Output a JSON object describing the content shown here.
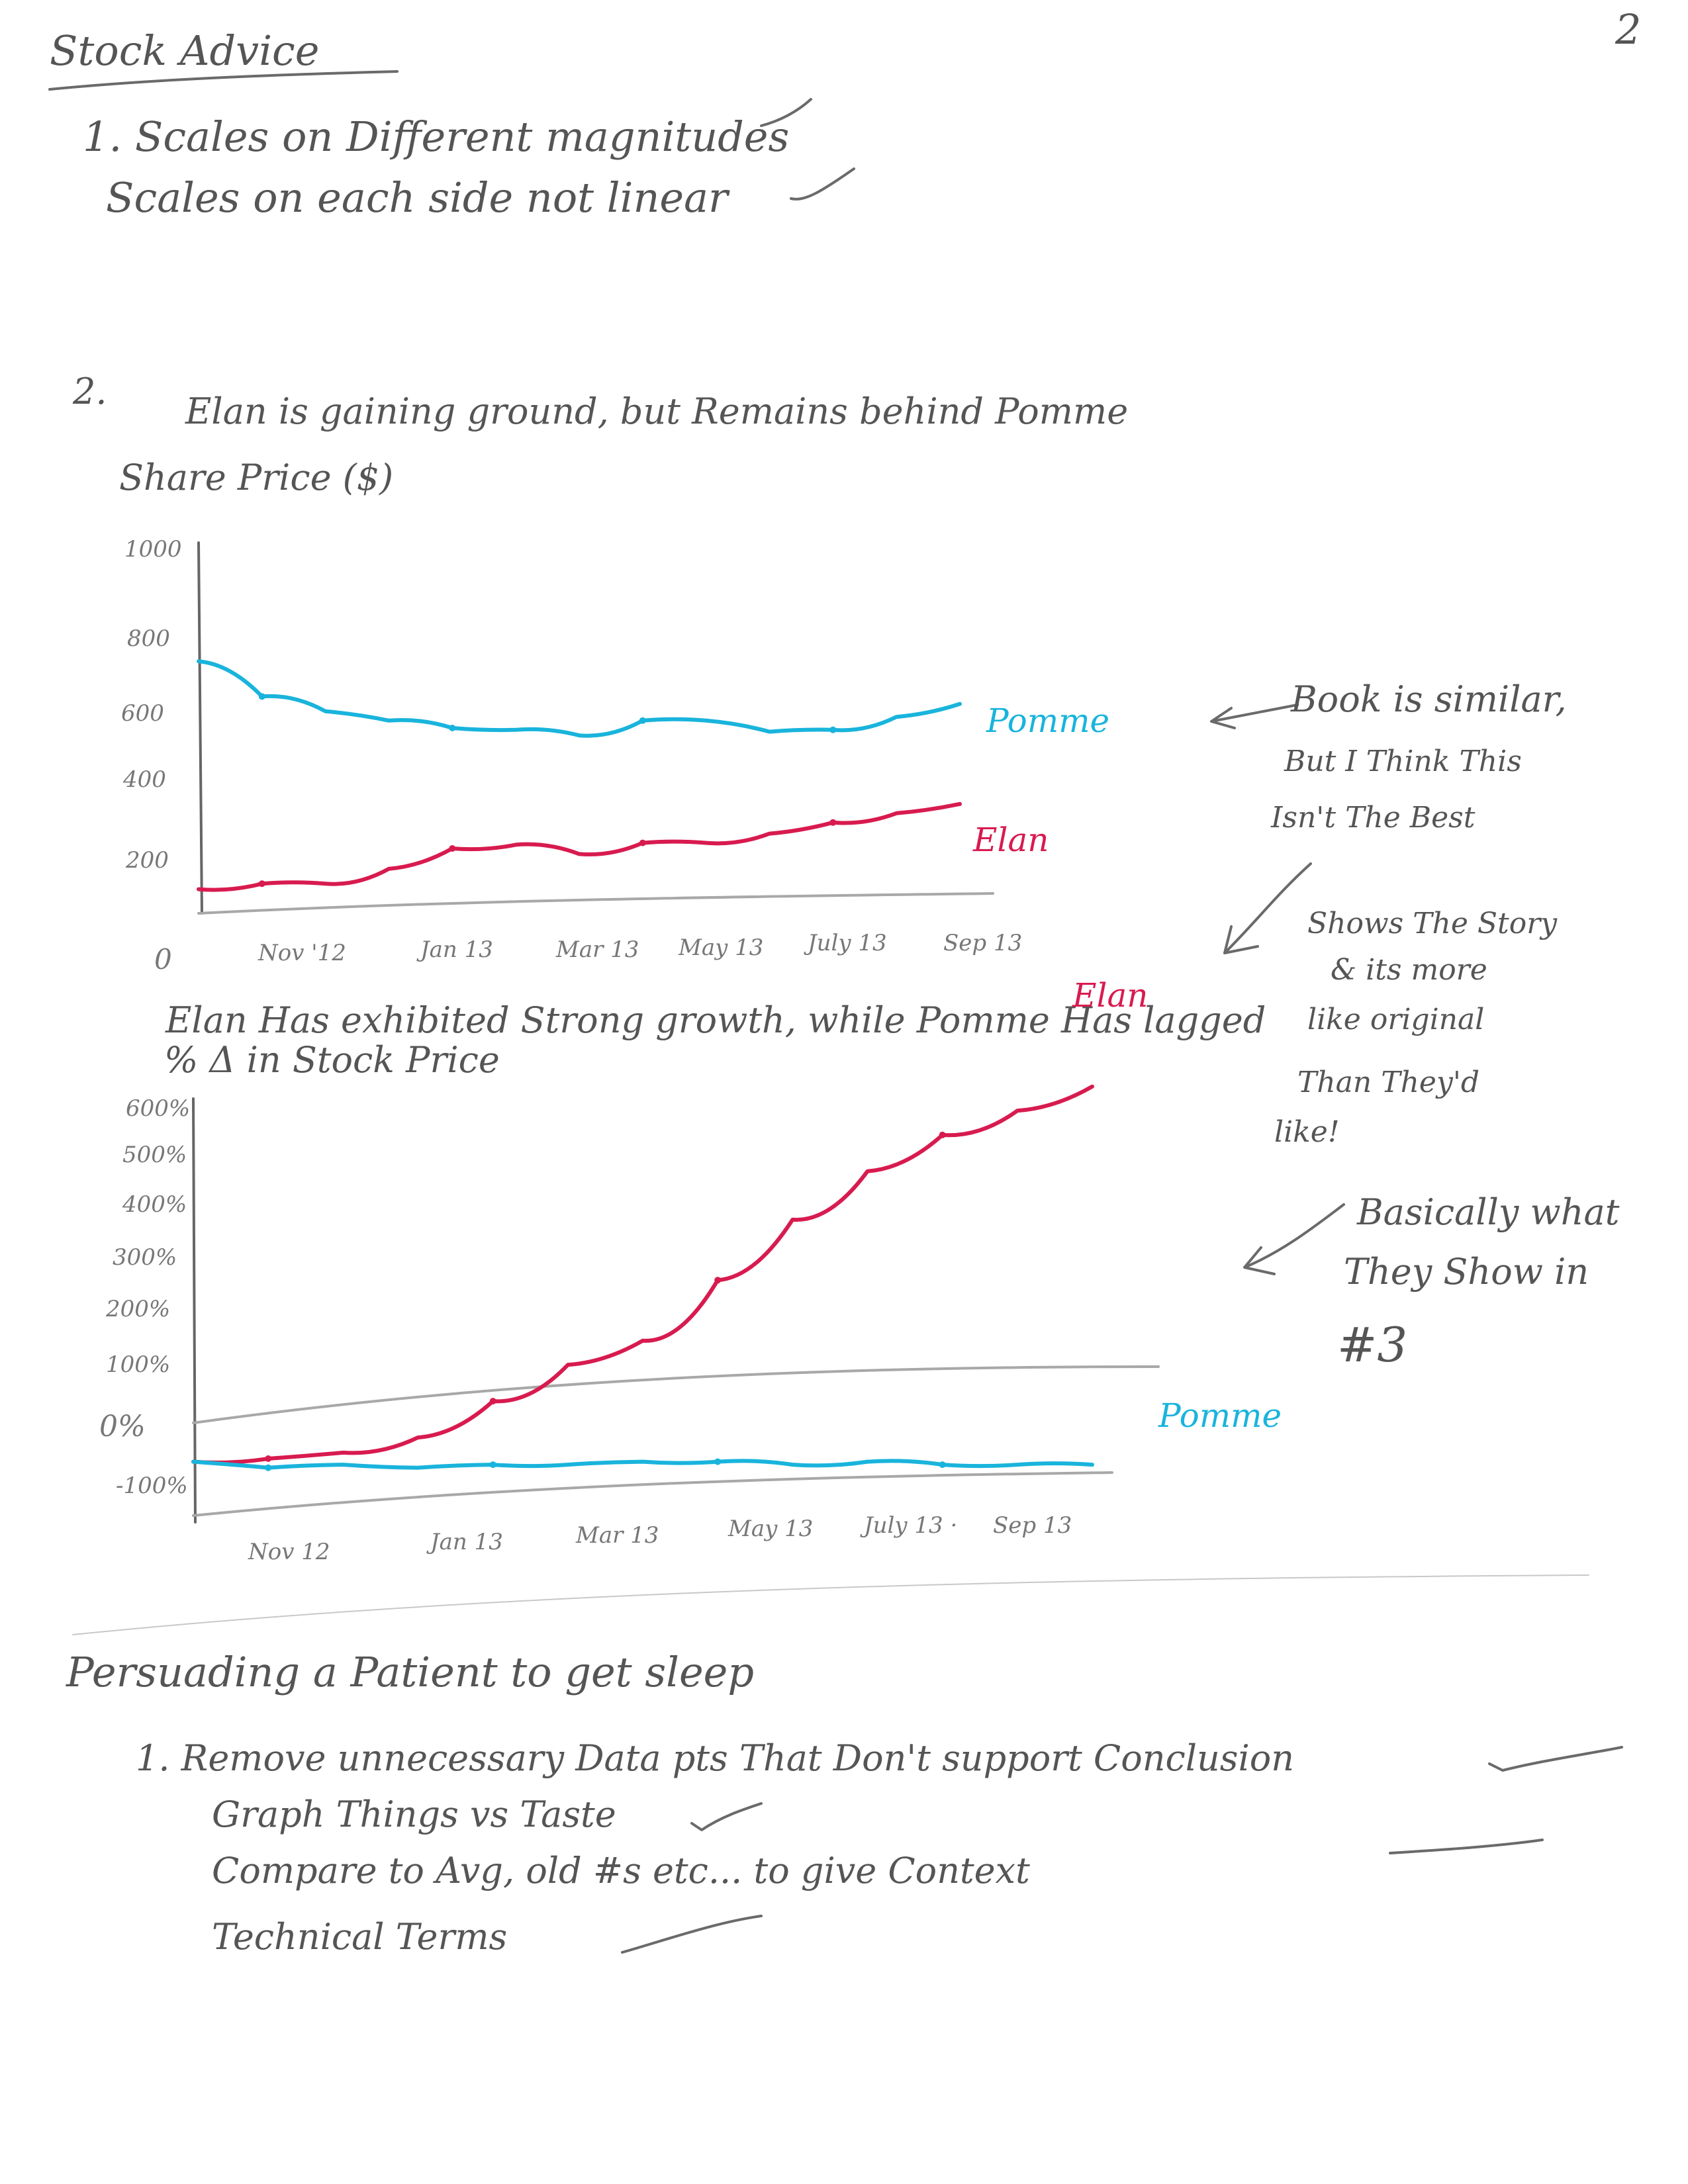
{
  "page_number": "2",
  "header": {
    "title": "Stock Advice"
  },
  "list1": {
    "line1": "1. Scales on Different magnitudes",
    "line2": "Scales on each side not linear"
  },
  "section2": {
    "number": "2.",
    "chart_a": {
      "title": "Elan is gaining ground, but Remains behind Pomme",
      "ylabel": "Share Price ($)",
      "y_ticks": [
        "1000",
        "800",
        "600",
        "400",
        "200",
        "0"
      ],
      "x_ticks": [
        "Nov '12",
        "Jan 13",
        "Mar 13",
        "May 13",
        "July 13",
        "Sep 13"
      ],
      "series_labels": {
        "pomme": "Pomme",
        "elan": "Elan"
      }
    },
    "chart_b": {
      "title_line1": "Elan Has exhibited Strong growth, while Pomme Has lagged",
      "title_line2": "% Δ in Stock Price",
      "y_ticks": [
        "600%",
        "500%",
        "400%",
        "300%",
        "200%",
        "100%",
        "0%",
        "-100%"
      ],
      "x_ticks": [
        "Nov 12",
        "Jan 13",
        "Mar 13",
        "May 13",
        "July 13 ·",
        "Sep 13"
      ],
      "series_labels": {
        "elan": "Elan",
        "pomme": "Pomme"
      }
    },
    "notes": {
      "note1_line1": "Book is similar,",
      "note1_line2": "But I Think This",
      "note1_line3": "Isn't The Best",
      "note2_line1": "Shows The Story",
      "note2_line2": "& its more",
      "note2_line3": "like original",
      "note2_line4": "Than They'd",
      "note2_line5": "like!",
      "note3_line1": "Basically what",
      "note3_line2": "They Show in",
      "note3_line3": "#3"
    }
  },
  "section3": {
    "heading": "Persuading a Patient to get sleep",
    "items": [
      "1. Remove unnecessary Data pts That Don't support Conclusion",
      "Graph Things vs Taste",
      "Compare to Avg, old #s etc...   to give   Context",
      "Technical Terms"
    ]
  },
  "chart_data": [
    {
      "type": "line",
      "title": "Elan is gaining ground, but Remains behind Pomme",
      "ylabel": "Share Price ($)",
      "xlabel": "",
      "ylim": [
        0,
        1000
      ],
      "categories": [
        "Nov '12",
        "Jan 13",
        "Mar 13",
        "May 13",
        "July 13",
        "Sep 13"
      ],
      "x": [
        0,
        1,
        2,
        3,
        4,
        5,
        6,
        7,
        8,
        9,
        10,
        11,
        12
      ],
      "series": [
        {
          "name": "Pomme",
          "values": [
            680,
            585,
            545,
            520,
            500,
            495,
            480,
            520,
            520,
            490,
            495,
            530,
            565
          ]
        },
        {
          "name": "Elan",
          "values": [
            65,
            80,
            80,
            120,
            175,
            185,
            160,
            190,
            190,
            215,
            245,
            270,
            295
          ]
        }
      ],
      "colors": {
        "Pomme": "#19b4dc",
        "Elan": "#d81b4f"
      }
    },
    {
      "type": "line",
      "title": "Elan Has exhibited Strong growth, while Pomme Has lagged",
      "ylabel": "% Δ in Stock Price",
      "xlabel": "",
      "ylim": [
        -100,
        600
      ],
      "categories": [
        "Nov 12",
        "Jan 13",
        "Mar 13",
        "May 13",
        "July 13",
        "Sep 13"
      ],
      "x": [
        0,
        1,
        2,
        3,
        4,
        5,
        6,
        7,
        8,
        9,
        10,
        11,
        12
      ],
      "series": [
        {
          "name": "Elan",
          "values": [
            0,
            5,
            15,
            40,
            100,
            160,
            200,
            300,
            400,
            480,
            540,
            580,
            620
          ]
        },
        {
          "name": "Pomme",
          "values": [
            0,
            -10,
            -5,
            -10,
            -5,
            -5,
            0,
            0,
            -5,
            0,
            -5,
            -5,
            -5
          ]
        }
      ],
      "colors": {
        "Pomme": "#19b4dc",
        "Elan": "#d81b4f"
      }
    }
  ]
}
